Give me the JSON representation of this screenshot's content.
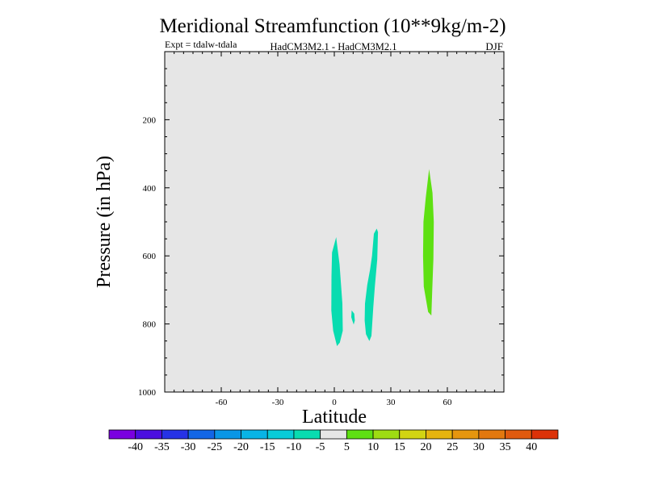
{
  "chart_data": {
    "type": "contour",
    "title": "Meridional Streamfunction (10**9kg/m-2)",
    "expt_label": "Expt = tdalw-tdala",
    "model_label": "HadCM3M2.1 - HadCM3M2.1",
    "season": "DJF",
    "xlabel": "Latitude",
    "ylabel": "Pressure (in hPa)",
    "xlim": [
      -90,
      90
    ],
    "ylim": [
      1000,
      0
    ],
    "x_ticks": [
      -60,
      -30,
      0,
      30,
      60
    ],
    "y_ticks": [
      200,
      400,
      600,
      800,
      1000
    ],
    "plot_background": "#e6e6e6",
    "colorbar": {
      "boundaries": [
        -45,
        -40,
        -35,
        -30,
        -25,
        -20,
        -15,
        -10,
        -5,
        5,
        10,
        15,
        20,
        25,
        30,
        35,
        40,
        45
      ],
      "labels": [
        "-40",
        "-35",
        "-30",
        "-25",
        "-20",
        "-15",
        "-10",
        "-5",
        "5",
        "10",
        "15",
        "20",
        "25",
        "30",
        "35",
        "40"
      ],
      "colors": [
        "#7a00e0",
        "#4b0ee0",
        "#2632e6",
        "#1266e6",
        "#0a96e6",
        "#08b4e6",
        "#08ccd8",
        "#08dcb0",
        "#e6e6e6",
        "#5ee012",
        "#9edc12",
        "#d2d412",
        "#e6b40e",
        "#e6960e",
        "#e2780e",
        "#e05a0e",
        "#dc3208"
      ]
    },
    "regions": [
      {
        "name": "negative-cell-1",
        "fill": "#08dcb0",
        "points": [
          [
            -1.5,
            660
          ],
          [
            -1.2,
            590
          ],
          [
            1.0,
            545
          ],
          [
            2.8,
            625
          ],
          [
            4.3,
            740
          ],
          [
            4.5,
            820
          ],
          [
            2.9,
            855
          ],
          [
            1.4,
            865
          ],
          [
            -0.6,
            820
          ],
          [
            -1.6,
            760
          ]
        ]
      },
      {
        "name": "negative-cell-2",
        "fill": "#08dcb0",
        "points": [
          [
            9.0,
            780
          ],
          [
            9.2,
            760
          ],
          [
            10.6,
            770
          ],
          [
            10.9,
            790
          ],
          [
            10.3,
            802
          ],
          [
            9.7,
            792
          ]
        ]
      },
      {
        "name": "negative-cell-3",
        "fill": "#08dcb0",
        "points": [
          [
            16.3,
            740
          ],
          [
            17.5,
            685
          ],
          [
            19.0,
            640
          ],
          [
            20.0,
            600
          ],
          [
            21.0,
            535
          ],
          [
            22.5,
            520
          ],
          [
            23.2,
            530
          ],
          [
            22.8,
            610
          ],
          [
            21.5,
            690
          ],
          [
            20.7,
            750
          ],
          [
            19.7,
            835
          ],
          [
            18.6,
            850
          ],
          [
            16.8,
            830
          ],
          [
            16.1,
            790
          ]
        ]
      },
      {
        "name": "positive-cell-1",
        "fill": "#5ee012",
        "points": [
          [
            47.3,
            500
          ],
          [
            48.5,
            430
          ],
          [
            50.3,
            345
          ],
          [
            52.1,
            415
          ],
          [
            52.8,
            500
          ],
          [
            52.6,
            610
          ],
          [
            52.0,
            700
          ],
          [
            51.5,
            775
          ],
          [
            49.8,
            765
          ],
          [
            47.5,
            690
          ],
          [
            47.1,
            600
          ]
        ]
      }
    ]
  }
}
